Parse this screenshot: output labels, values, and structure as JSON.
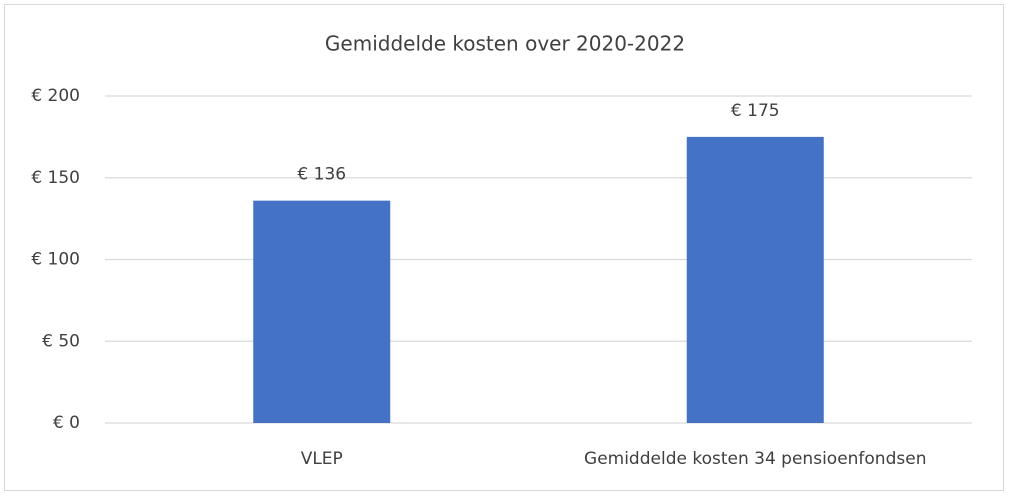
{
  "chart_data": {
    "type": "bar",
    "title": "Gemiddelde kosten over 2020-2022",
    "categories": [
      "VLEP",
      "Gemiddelde kosten 34 pensioenfondsen"
    ],
    "values": [
      136,
      175
    ],
    "value_labels": [
      "€ 136",
      "€ 175"
    ],
    "color": "#4472c4",
    "ylim": [
      0,
      200
    ],
    "yticks": [
      {
        "value": 0,
        "label": "€ 0"
      },
      {
        "value": 50,
        "label": "€ 50"
      },
      {
        "value": 100,
        "label": "€ 100"
      },
      {
        "value": 150,
        "label": "€ 150"
      },
      {
        "value": 200,
        "label": "€ 200"
      }
    ],
    "grid": true
  }
}
